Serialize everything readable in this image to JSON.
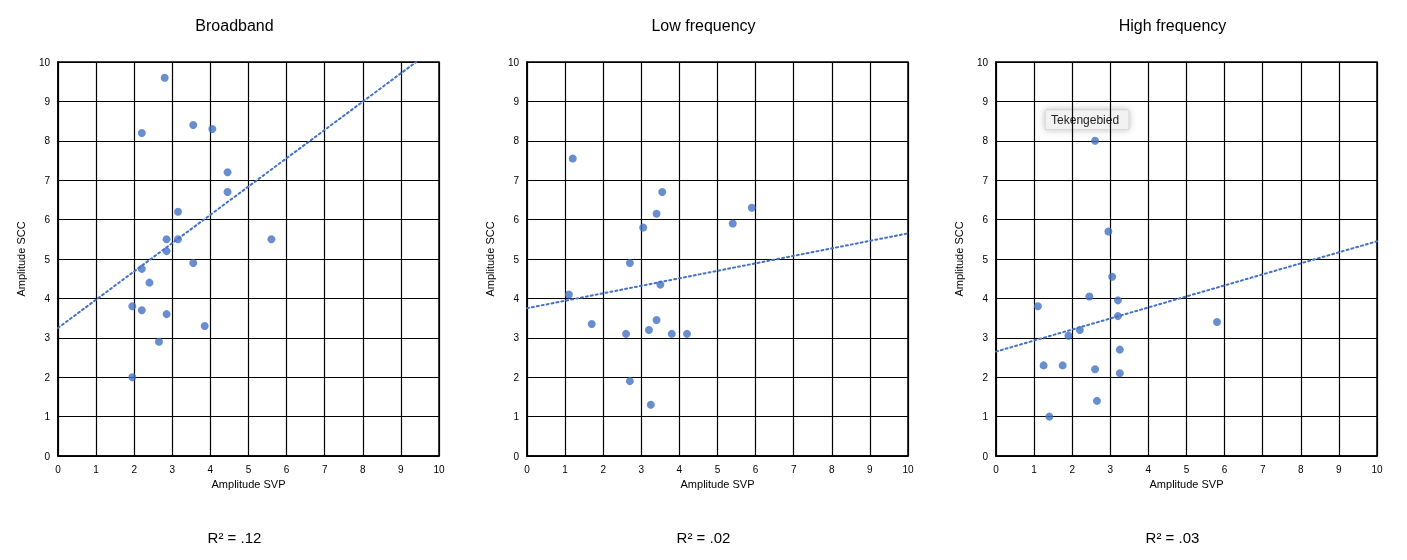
{
  "chart_data": [
    {
      "type": "scatter",
      "title": "Broadband",
      "xlabel": "Amplitude SVP",
      "ylabel": "Amplitude SCC",
      "xlim": [
        0,
        10
      ],
      "ylim": [
        0,
        10
      ],
      "xticks": [
        0,
        1,
        2,
        3,
        4,
        5,
        6,
        7,
        8,
        9,
        10
      ],
      "yticks": [
        0,
        1,
        2,
        3,
        4,
        5,
        6,
        7,
        8,
        9,
        10
      ],
      "grid": true,
      "marker": "circle",
      "annotations": [
        "R² = .12"
      ],
      "series": [
        {
          "type": "scatter",
          "color": "#4472c4",
          "x": [
            2.8,
            2.2,
            3.55,
            4.05,
            4.45,
            4.45,
            3.15,
            2.85,
            3.15,
            5.6,
            2.85,
            3.55,
            2.2,
            2.4,
            1.95,
            2.2,
            2.85,
            3.85,
            2.65,
            1.95
          ],
          "values": [
            9.6,
            8.2,
            8.4,
            8.3,
            7.2,
            6.7,
            6.2,
            5.5,
            5.5,
            5.5,
            5.2,
            4.9,
            4.75,
            4.4,
            3.8,
            3.7,
            3.6,
            3.3,
            2.9,
            2.0
          ]
        },
        {
          "type": "line",
          "color": "#4472c4",
          "marker": "none",
          "line_style": "dotted",
          "x": [
            0,
            9.4
          ],
          "values": [
            3.25,
            10
          ]
        }
      ]
    },
    {
      "type": "scatter",
      "title": "Low frequency",
      "xlabel": "Amplitude SVP",
      "ylabel": "Amplitude SCC",
      "xlim": [
        0,
        10
      ],
      "ylim": [
        0,
        10
      ],
      "xticks": [
        0,
        1,
        2,
        3,
        4,
        5,
        6,
        7,
        8,
        9,
        10
      ],
      "yticks": [
        0,
        1,
        2,
        3,
        4,
        5,
        6,
        7,
        8,
        9,
        10
      ],
      "grid": true,
      "marker": "circle",
      "annotations": [
        "R² = .02"
      ],
      "series": [
        {
          "type": "scatter",
          "color": "#4472c4",
          "x": [
            1.2,
            3.55,
            3.4,
            3.05,
            5.4,
            5.9,
            2.7,
            3.5,
            1.1,
            1.7,
            2.6,
            3.2,
            3.4,
            3.8,
            4.2,
            2.7,
            3.25
          ],
          "values": [
            7.55,
            6.7,
            6.15,
            5.8,
            5.9,
            6.3,
            4.9,
            4.35,
            4.1,
            3.35,
            3.1,
            3.2,
            3.45,
            3.1,
            3.1,
            1.9,
            1.3
          ]
        },
        {
          "type": "line",
          "color": "#4472c4",
          "marker": "none",
          "line_style": "dotted",
          "x": [
            0,
            10
          ],
          "values": [
            3.75,
            5.65
          ]
        }
      ]
    },
    {
      "type": "scatter",
      "title": "High frequency",
      "xlabel": "Amplitude SVP",
      "ylabel": "Amplitude SCC",
      "xlim": [
        0,
        10
      ],
      "ylim": [
        0,
        10
      ],
      "xticks": [
        0,
        1,
        2,
        3,
        4,
        5,
        6,
        7,
        8,
        9,
        10
      ],
      "yticks": [
        0,
        1,
        2,
        3,
        4,
        5,
        6,
        7,
        8,
        9,
        10
      ],
      "grid": true,
      "marker": "circle",
      "annotations": [
        {
          "text": "Tekengebied",
          "x": 2.6,
          "y": 8.0
        },
        "R² = .03"
      ],
      "series": [
        {
          "type": "scatter",
          "color": "#4472c4",
          "x": [
            2.6,
            2.95,
            3.05,
            2.45,
            3.2,
            3.2,
            1.1,
            5.8,
            2.2,
            1.9,
            3.25,
            1.25,
            1.75,
            2.6,
            3.25,
            2.65,
            1.4
          ],
          "values": [
            8.0,
            5.7,
            4.55,
            4.05,
            3.95,
            3.55,
            3.8,
            3.4,
            3.2,
            3.05,
            2.7,
            2.3,
            2.3,
            2.2,
            2.1,
            1.4,
            1.0
          ]
        },
        {
          "type": "line",
          "color": "#4472c4",
          "marker": "none",
          "line_style": "dotted",
          "x": [
            0,
            10
          ],
          "values": [
            2.65,
            5.45
          ]
        }
      ]
    }
  ]
}
